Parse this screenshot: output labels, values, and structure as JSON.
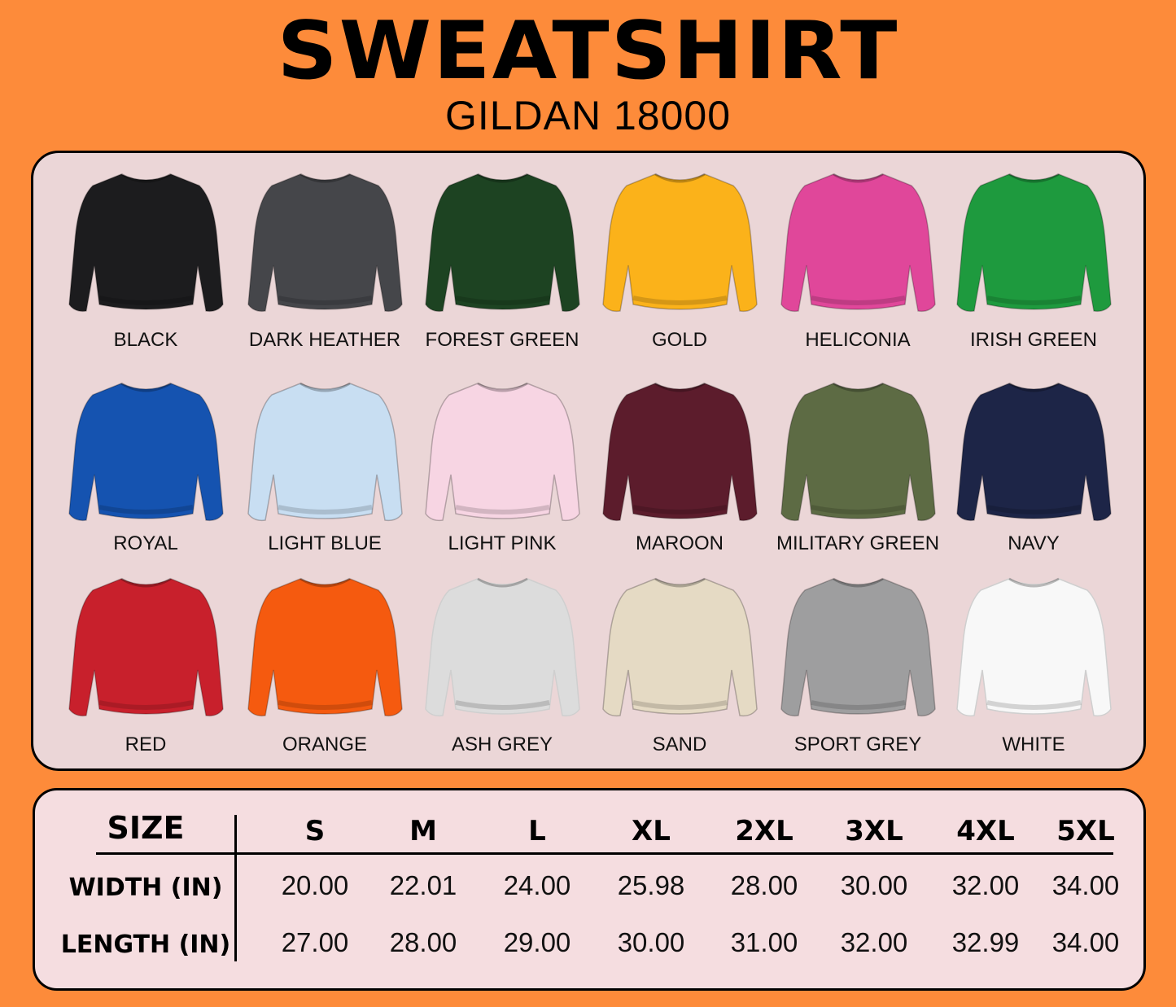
{
  "header": {
    "title": "SWEATSHIRT",
    "subtitle": "GILDAN 18000"
  },
  "colors": [
    {
      "name": "BLACK",
      "hex": "#1c1c1e"
    },
    {
      "name": "DARK HEATHER",
      "hex": "#45464a"
    },
    {
      "name": "FOREST GREEN",
      "hex": "#1d4322"
    },
    {
      "name": "GOLD",
      "hex": "#fbb21a"
    },
    {
      "name": "HELICONIA",
      "hex": "#e0479a"
    },
    {
      "name": "IRISH GREEN",
      "hex": "#1e9a3e"
    },
    {
      "name": "ROYAL",
      "hex": "#1553b0"
    },
    {
      "name": "LIGHT BLUE",
      "hex": "#c8def2"
    },
    {
      "name": "LIGHT PINK",
      "hex": "#f7d5e3"
    },
    {
      "name": "MAROON",
      "hex": "#5c1c2c"
    },
    {
      "name": "MILITARY GREEN",
      "hex": "#5d6b44"
    },
    {
      "name": "NAVY",
      "hex": "#1d2547"
    },
    {
      "name": "RED",
      "hex": "#c8202c"
    },
    {
      "name": "ORANGE",
      "hex": "#f55a0f"
    },
    {
      "name": "ASH GREY",
      "hex": "#dcdcdc"
    },
    {
      "name": "SAND",
      "hex": "#e5dac4"
    },
    {
      "name": "SPORT GREY",
      "hex": "#9e9e9f"
    },
    {
      "name": "WHITE",
      "hex": "#f8f8f8"
    }
  ],
  "size_table": {
    "header_label": "SIZE",
    "sizes": [
      "S",
      "M",
      "L",
      "XL",
      "2XL",
      "3XL",
      "4XL",
      "5XL"
    ],
    "rows": [
      {
        "label": "WIDTH (IN)",
        "values": [
          "20.00",
          "22.01",
          "24.00",
          "25.98",
          "28.00",
          "30.00",
          "32.00",
          "34.00"
        ]
      },
      {
        "label": "LENGTH (IN)",
        "values": [
          "27.00",
          "28.00",
          "29.00",
          "30.00",
          "31.00",
          "32.00",
          "32.99",
          "34.00"
        ]
      }
    ]
  }
}
